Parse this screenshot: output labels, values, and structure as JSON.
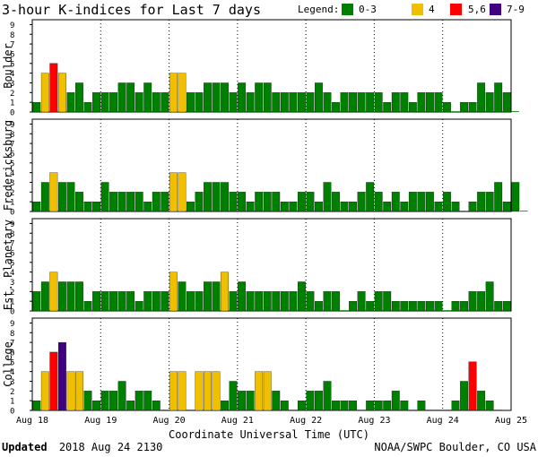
{
  "title": "3-hour K-indices for Last 7 days",
  "legend": {
    "label": "Legend:",
    "items": [
      {
        "label": "0-3",
        "color": "#008000"
      },
      {
        "label": "4",
        "color": "#f0c000"
      },
      {
        "label": "5,6",
        "color": "#ff0000"
      },
      {
        "label": "7-9",
        "color": "#400080"
      }
    ]
  },
  "xlabel": "Coordinate Universal Time (UTC)",
  "footer": {
    "updated_label": "Updated",
    "updated_value": "2018 Aug 24 2130",
    "credit": "NOAA/SWPC Boulder, CO USA"
  },
  "chart_data": [
    {
      "type": "bar",
      "title": "Boulder",
      "ylim": [
        0,
        9
      ],
      "yticks": [
        "0",
        "1",
        "2",
        "3",
        "4",
        "5",
        "6",
        "7",
        "8",
        "9"
      ],
      "x_tick_labels": [
        "Aug 18",
        "Aug 19",
        "Aug 20",
        "Aug 21",
        "Aug 22",
        "Aug 23",
        "Aug 24",
        "Aug 25"
      ],
      "values": [
        1,
        4,
        5,
        4,
        2,
        3,
        1,
        2,
        2,
        2,
        3,
        3,
        2,
        3,
        2,
        2,
        4,
        4,
        2,
        2,
        3,
        3,
        3,
        2,
        3,
        2,
        3,
        3,
        2,
        2,
        2,
        2,
        2,
        3,
        2,
        1,
        2,
        2,
        2,
        2,
        2,
        1,
        2,
        2,
        1,
        2,
        2,
        2,
        1,
        0,
        1,
        1,
        3,
        2,
        3,
        2,
        0
      ]
    },
    {
      "type": "bar",
      "title": "Fredericksburg",
      "ylim": [
        0,
        9
      ],
      "yticks": [
        "0",
        "1",
        "2",
        "3",
        "4",
        "5",
        "6",
        "7",
        "8",
        "9"
      ],
      "x_tick_labels": [
        "Aug 18",
        "Aug 19",
        "Aug 20",
        "Aug 21",
        "Aug 22",
        "Aug 23",
        "Aug 24",
        "Aug 25"
      ],
      "values": [
        1,
        3,
        4,
        3,
        3,
        2,
        1,
        1,
        3,
        2,
        2,
        2,
        2,
        1,
        2,
        2,
        4,
        4,
        1,
        2,
        3,
        3,
        3,
        2,
        2,
        1,
        2,
        2,
        2,
        1,
        1,
        2,
        2,
        1,
        3,
        2,
        1,
        1,
        2,
        3,
        2,
        1,
        2,
        1,
        2,
        2,
        2,
        1,
        2,
        1,
        0,
        1,
        2,
        2,
        3,
        1,
        3,
        0
      ]
    },
    {
      "type": "bar",
      "title": "Est. Planetary",
      "ylim": [
        0,
        9
      ],
      "yticks": [
        "0",
        "1",
        "2",
        "3",
        "4",
        "5",
        "6",
        "7",
        "8",
        "9"
      ],
      "x_tick_labels": [
        "Aug 18",
        "Aug 19",
        "Aug 20",
        "Aug 21",
        "Aug 22",
        "Aug 23",
        "Aug 24",
        "Aug 25"
      ],
      "values": [
        2,
        3,
        4,
        3,
        3,
        3,
        1,
        2,
        2,
        2,
        2,
        2,
        1,
        2,
        2,
        2,
        4,
        3,
        2,
        2,
        3,
        3,
        4,
        2,
        3,
        2,
        2,
        2,
        2,
        2,
        2,
        3,
        2,
        1,
        2,
        2,
        0,
        1,
        2,
        1,
        2,
        2,
        1,
        1,
        1,
        1,
        1,
        1,
        0,
        1,
        1,
        2,
        2,
        3,
        1,
        1
      ]
    },
    {
      "type": "bar",
      "title": "College",
      "ylim": [
        0,
        9
      ],
      "yticks": [
        "0",
        "1",
        "2",
        "3",
        "4",
        "5",
        "6",
        "7",
        "8",
        "9"
      ],
      "x_tick_labels": [
        "Aug 18",
        "Aug 19",
        "Aug 20",
        "Aug 21",
        "Aug 22",
        "Aug 23",
        "Aug 24",
        "Aug 25"
      ],
      "values": [
        1,
        4,
        6,
        7,
        4,
        4,
        2,
        1,
        2,
        2,
        3,
        1,
        2,
        2,
        1,
        0,
        4,
        4,
        0,
        4,
        4,
        4,
        1,
        3,
        2,
        2,
        4,
        4,
        2,
        1,
        0,
        1,
        2,
        2,
        3,
        1,
        1,
        1,
        0,
        1,
        1,
        1,
        2,
        1,
        0,
        1,
        0,
        0,
        0,
        1,
        3,
        5,
        2,
        1,
        0
      ]
    }
  ]
}
